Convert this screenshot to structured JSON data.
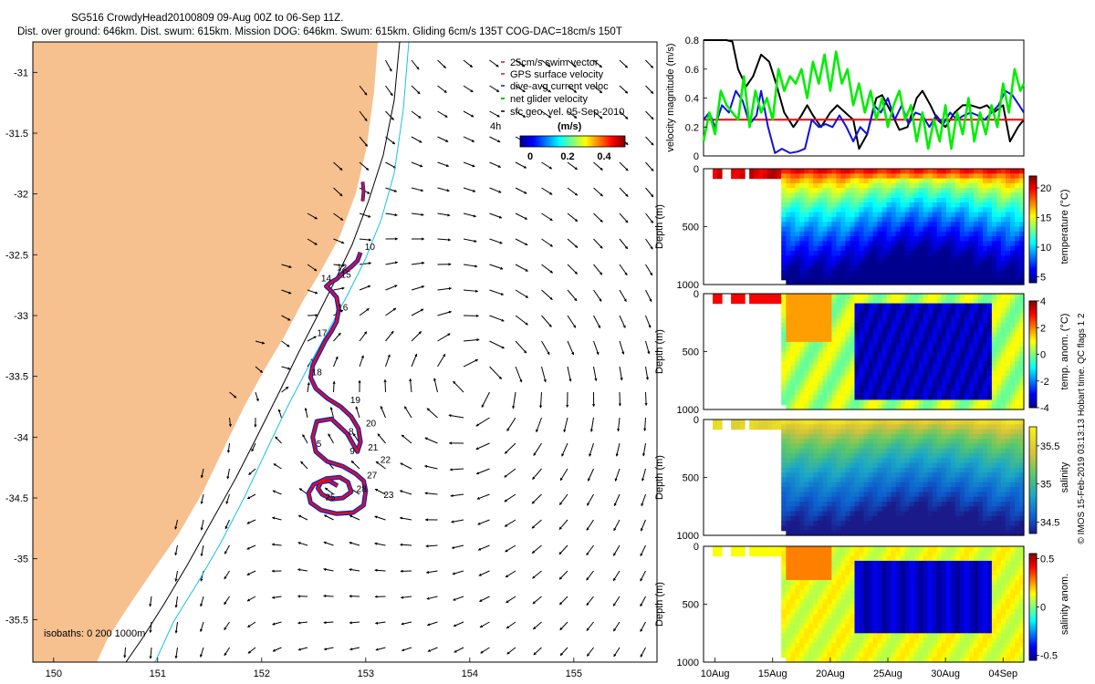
{
  "figure": {
    "title_line1": "SG516 CrowdyHead20100809 09-Aug 00Z to 06-Sep 11Z.",
    "title_line2": "Dist. over ground: 646km. Dist. swum: 615km. Mission DOG: 646km. Swum: 615km. Gliding 6cm/s 135T COG-DAC=18cm/s 150T",
    "credit": "© IMOS 15-Feb-2019 03:13:13 Hobart time. QC flags 1  2"
  },
  "map": {
    "legend": [
      "25cm/s swim vector",
      "GPS surface velocity",
      "dive-avg current veloc",
      "net glider velocity",
      "sfc geo. vel. 05-Sep-2010"
    ],
    "legend_scale_label": "4h",
    "colorbar_unit": "(m/s)",
    "colorbar_ticks": [
      "0",
      "0.2",
      "0.4"
    ],
    "isobath_label": "isobaths: 0  200  1000m",
    "land_color": "#f7c08f",
    "track_colors": {
      "outer": "#0a24d8",
      "inner": "#e01010"
    }
  },
  "chart_data": [
    {
      "type": "map",
      "xlim": [
        149.8,
        155.8
      ],
      "ylim": [
        -35.85,
        -30.75
      ],
      "x_ticks": [
        150,
        151,
        152,
        153,
        154,
        155
      ],
      "y_ticks": [
        -31,
        -31.5,
        -32,
        -32.5,
        -33,
        -33.5,
        -34,
        -34.5,
        -35,
        -35.5
      ],
      "track": {
        "name": "glider track",
        "lon": [
          152.95,
          152.92,
          152.86,
          152.78,
          152.72,
          152.66,
          152.62,
          152.66,
          152.72,
          152.74,
          152.72,
          152.67,
          152.61,
          152.55,
          152.49,
          152.47,
          152.52,
          152.63,
          152.76,
          152.86,
          152.93,
          152.95,
          152.92,
          152.82,
          152.67,
          152.53,
          152.49,
          152.52,
          152.63,
          152.78,
          152.9,
          152.98,
          153.0,
          152.98,
          152.88,
          152.72,
          152.57,
          152.47,
          152.45,
          152.5,
          152.62,
          152.75,
          152.83,
          152.86,
          152.78,
          152.67,
          152.58,
          152.54,
          152.57,
          152.65,
          152.73
        ],
        "lat": [
          -32.48,
          -32.55,
          -32.6,
          -32.65,
          -32.7,
          -32.73,
          -32.76,
          -32.79,
          -32.85,
          -32.95,
          -33.05,
          -33.13,
          -33.21,
          -33.31,
          -33.41,
          -33.51,
          -33.6,
          -33.68,
          -33.75,
          -33.83,
          -33.93,
          -34.04,
          -34.12,
          -33.97,
          -33.85,
          -33.87,
          -34.0,
          -34.12,
          -34.2,
          -34.24,
          -34.3,
          -34.36,
          -34.44,
          -34.56,
          -34.62,
          -34.63,
          -34.6,
          -34.54,
          -34.46,
          -34.39,
          -34.34,
          -34.33,
          -34.37,
          -34.45,
          -34.5,
          -34.51,
          -34.47,
          -34.42,
          -34.37,
          -34.36,
          -34.4
        ]
      },
      "stub_track": {
        "lon": [
          152.97,
          152.98,
          152.97
        ],
        "lat": [
          -31.9,
          -31.98,
          -32.06
        ]
      },
      "day_labels": [
        {
          "label": "10",
          "lon": 153.04,
          "lat": -32.46
        },
        {
          "label": "12",
          "lon": 152.77,
          "lat": -32.63
        },
        {
          "label": "14",
          "lon": 152.62,
          "lat": -32.72
        },
        {
          "label": "15",
          "lon": 152.81,
          "lat": -32.69
        },
        {
          "label": "16",
          "lon": 152.78,
          "lat": -32.96
        },
        {
          "label": "17",
          "lon": 152.58,
          "lat": -33.17
        },
        {
          "label": "18",
          "lon": 152.53,
          "lat": -33.49
        },
        {
          "label": "19",
          "lon": 152.9,
          "lat": -33.72
        },
        {
          "label": "20",
          "lon": 153.05,
          "lat": -33.91
        },
        {
          "label": "21",
          "lon": 153.07,
          "lat": -34.11
        },
        {
          "label": "22",
          "lon": 153.19,
          "lat": -34.21
        },
        {
          "label": "23",
          "lon": 153.22,
          "lat": -34.5
        },
        {
          "label": "25",
          "lon": 152.66,
          "lat": -34.52
        },
        {
          "label": "27",
          "lon": 153.06,
          "lat": -34.34
        },
        {
          "label": "28",
          "lon": 152.96,
          "lat": -34.45
        },
        {
          "label": "5",
          "lon": 152.55,
          "lat": -34.08
        },
        {
          "label": "8",
          "lon": 152.86,
          "lat": -33.98
        },
        {
          "label": "9",
          "lon": 152.87,
          "lat": -34.14
        }
      ]
    },
    {
      "type": "line",
      "xlabel": "",
      "ylabel": "velocity magnitude (m/s)",
      "ylim": [
        0,
        0.8
      ],
      "y_ticks": [
        "0",
        "0.2",
        "0.4",
        "0.6",
        "0.8"
      ],
      "series": [
        {
          "color": "#000000",
          "t": [
            9.0,
            9.8,
            10.5,
            11.0,
            11.5,
            12.0,
            12.7,
            13.3,
            14.0,
            14.7,
            15.3,
            16.0,
            16.8,
            17.5,
            18.0,
            18.5,
            19.2,
            20.0,
            20.6,
            21.3,
            22.0,
            22.5,
            23.2,
            24.0,
            24.5,
            25.3,
            26.0,
            26.7,
            27.5,
            28.0,
            28.7,
            29.3,
            30.0,
            30.8,
            31.5,
            32.2,
            33.0,
            33.6,
            34.2,
            35.0,
            35.6,
            36.3,
            36.8
          ],
          "v": [
            0.8,
            0.8,
            0.8,
            0.8,
            0.79,
            0.6,
            0.48,
            0.55,
            0.7,
            0.65,
            0.5,
            0.3,
            0.2,
            0.28,
            0.35,
            0.28,
            0.2,
            0.3,
            0.35,
            0.3,
            0.25,
            0.05,
            0.15,
            0.4,
            0.42,
            0.3,
            0.18,
            0.2,
            0.4,
            0.45,
            0.35,
            0.25,
            0.2,
            0.3,
            0.35,
            0.35,
            0.33,
            0.35,
            0.3,
            0.35,
            0.1,
            0.2,
            0.25
          ]
        },
        {
          "color": "#ff0000",
          "t": [
            9.0,
            36.8
          ],
          "v": [
            0.25,
            0.25
          ]
        },
        {
          "color": "#1010dd",
          "t": [
            9.0,
            9.5,
            10.0,
            10.6,
            11.2,
            11.8,
            12.4,
            13.0,
            13.6,
            14.0,
            14.6,
            15.2,
            15.8,
            16.5,
            17.2,
            17.8,
            18.4,
            19.0,
            19.6,
            20.2,
            20.8,
            21.4,
            22.0,
            22.6,
            23.2,
            23.8,
            24.4,
            25.0,
            25.6,
            26.2,
            26.8,
            27.4,
            28.0,
            28.6,
            29.2,
            29.8,
            30.4,
            31.0,
            31.6,
            32.2,
            32.8,
            33.4,
            34.0,
            34.6,
            35.2,
            35.8,
            36.4,
            36.8
          ],
          "v": [
            0.25,
            0.3,
            0.2,
            0.35,
            0.3,
            0.45,
            0.38,
            0.22,
            0.28,
            0.45,
            0.2,
            0.02,
            0.05,
            0.02,
            0.03,
            0.05,
            0.25,
            0.2,
            0.22,
            0.2,
            0.28,
            0.2,
            0.1,
            0.2,
            0.15,
            0.35,
            0.3,
            0.4,
            0.25,
            0.35,
            0.22,
            0.3,
            0.28,
            0.2,
            0.28,
            0.22,
            0.3,
            0.25,
            0.28,
            0.3,
            0.28,
            0.25,
            0.3,
            0.35,
            0.45,
            0.42,
            0.35,
            0.3
          ]
        },
        {
          "color": "#00ee00",
          "t": [
            9.0,
            9.5,
            10.0,
            10.5,
            11.0,
            11.5,
            12.0,
            12.5,
            13.0,
            13.5,
            14.0,
            14.5,
            15.0,
            15.5,
            16.0,
            16.5,
            17.0,
            17.5,
            18.0,
            18.5,
            19.0,
            19.5,
            20.0,
            20.5,
            21.0,
            21.5,
            22.0,
            22.5,
            23.0,
            23.5,
            24.0,
            24.5,
            25.0,
            25.5,
            26.0,
            26.5,
            27.0,
            27.5,
            28.0,
            28.5,
            29.0,
            29.5,
            30.0,
            30.5,
            31.0,
            31.5,
            32.0,
            32.5,
            33.0,
            33.5,
            34.0,
            34.5,
            35.0,
            35.5,
            36.0,
            36.5,
            36.8
          ],
          "v": [
            0.1,
            0.3,
            0.15,
            0.45,
            0.35,
            0.3,
            0.25,
            0.55,
            0.2,
            0.45,
            0.3,
            0.4,
            0.25,
            0.6,
            0.45,
            0.55,
            0.5,
            0.6,
            0.4,
            0.65,
            0.5,
            0.7,
            0.45,
            0.72,
            0.5,
            0.6,
            0.35,
            0.5,
            0.3,
            0.45,
            0.25,
            0.4,
            0.2,
            0.35,
            0.45,
            0.25,
            0.35,
            0.1,
            0.3,
            0.05,
            0.25,
            0.1,
            0.35,
            0.05,
            0.3,
            0.15,
            0.4,
            0.1,
            0.3,
            0.15,
            0.35,
            0.2,
            0.5,
            0.3,
            0.6,
            0.45,
            0.5
          ]
        }
      ]
    },
    {
      "type": "heatmap",
      "name": "temperature",
      "ylabel": "Depth (m)",
      "colorbar_label": "temperature (°C)",
      "ylim": [
        1000,
        0
      ],
      "y_ticks": [
        "0",
        "500",
        "1000"
      ],
      "colorbar_ticks": [
        "5",
        "10",
        "15",
        "20"
      ],
      "clim": [
        4,
        22
      ]
    },
    {
      "type": "heatmap",
      "name": "temp anomaly",
      "ylabel": "Depth (m)",
      "colorbar_label": "temp. anom. (°C)",
      "ylim": [
        1000,
        0
      ],
      "y_ticks": [
        "0",
        "500",
        "1000"
      ],
      "colorbar_ticks": [
        "4",
        "2",
        "0",
        "-2",
        "-4"
      ],
      "clim": [
        -4,
        4
      ]
    },
    {
      "type": "heatmap",
      "name": "salinity",
      "ylabel": "Depth (m)",
      "colorbar_label": "salinity",
      "ylim": [
        1000,
        0
      ],
      "y_ticks": [
        "0",
        "500",
        "1000"
      ],
      "colorbar_ticks": [
        "35.5",
        "35",
        "34.5"
      ],
      "clim": [
        34.35,
        35.75
      ]
    },
    {
      "type": "heatmap",
      "name": "salinity anomaly",
      "ylabel": "Depth (m)",
      "colorbar_label": "salinity anom.",
      "ylim": [
        1000,
        0
      ],
      "y_ticks": [
        "0",
        "500",
        "1000"
      ],
      "colorbar_ticks": [
        "0.5",
        "0",
        "-0.5"
      ],
      "clim": [
        -0.55,
        0.55
      ],
      "x_ticks": [
        "10Aug",
        "15Aug",
        "20Aug",
        "25Aug",
        "30Aug",
        "04Sep"
      ]
    }
  ]
}
